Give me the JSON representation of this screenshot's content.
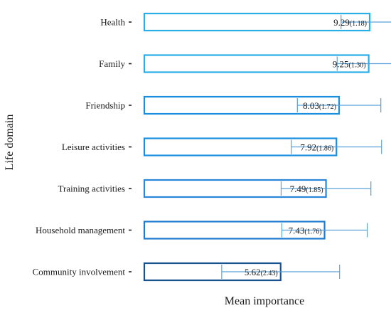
{
  "chart_data": {
    "type": "bar",
    "orientation": "horizontal",
    "title": "",
    "xlabel": "Mean importance",
    "ylabel": "Life domain",
    "xlim": [
      0,
      10.6
    ],
    "grid": false,
    "categories": [
      "Health",
      "Family",
      "Friendship",
      "Leisure activities",
      "Training activities",
      "Household management",
      "Community involvement"
    ],
    "values": [
      9.29,
      9.25,
      8.03,
      7.92,
      7.49,
      7.43,
      5.62
    ],
    "errors_sd": [
      1.18,
      1.3,
      1.72,
      1.86,
      1.85,
      1.76,
      2.43
    ],
    "value_labels": [
      "9.29",
      "9.25",
      "8.03",
      "7.92",
      "7.49",
      "7.43",
      "5.62"
    ],
    "sd_labels": [
      "(1.18)",
      "(1.30)",
      "(1.72)",
      "(1.86)",
      "(1.85)",
      "(1.76)",
      "(2.43)"
    ],
    "bar_colors": [
      "#29aee8",
      "#29aee8",
      "#1a8fe0",
      "#1a8fe0",
      "#2a86d8",
      "#1f7ad0",
      "#17528f"
    ],
    "error_color": "#5aa0d8"
  }
}
